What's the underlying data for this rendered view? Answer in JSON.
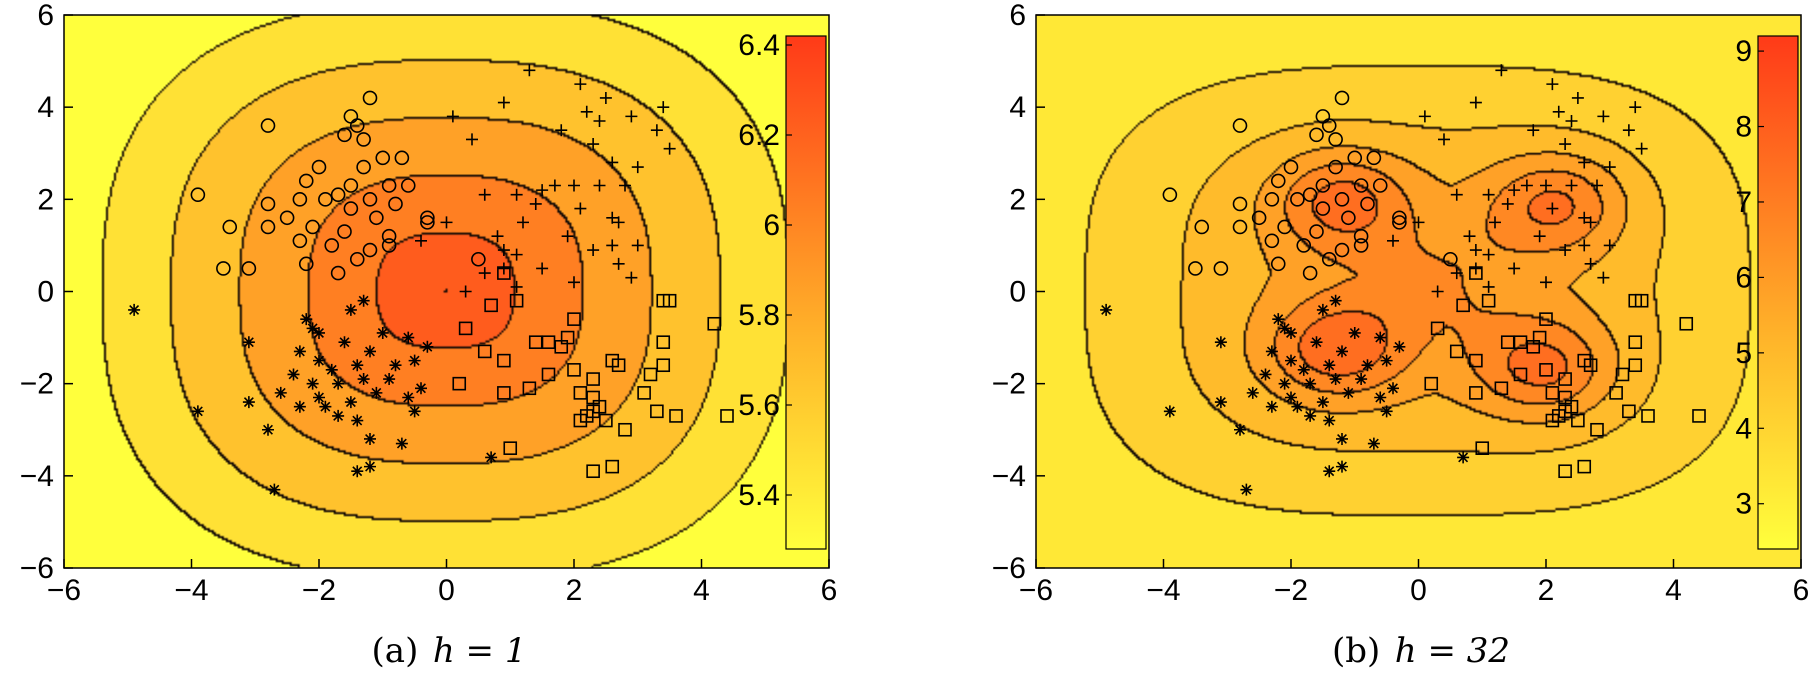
{
  "chart_data": [
    {
      "type": "heatmap",
      "title": "",
      "xlabel": "",
      "ylabel": "",
      "xlim": [
        -6,
        6
      ],
      "ylim": [
        -6,
        6
      ],
      "xticks": [
        "−6",
        "−4",
        "−2",
        "0",
        "2",
        "4",
        "6"
      ],
      "yticks": [
        "6",
        "4",
        "2",
        "0",
        "−2",
        "−4",
        "−6"
      ],
      "colorbar": {
        "range": [
          5.28,
          6.42
        ],
        "ticks": [
          "6.4",
          "6.2",
          "6",
          "5.8",
          "5.6",
          "5.4"
        ],
        "placement": "right-inside"
      },
      "peak_value": 6.35,
      "caption_prefix": "(a)",
      "caption_math": "h = 1",
      "grid": false
    },
    {
      "type": "heatmap",
      "title": "",
      "xlabel": "",
      "ylabel": "",
      "xlim": [
        -6,
        6
      ],
      "ylim": [
        -6,
        6
      ],
      "xticks": [
        "−6",
        "−4",
        "−2",
        "0",
        "2",
        "4",
        "6"
      ],
      "yticks": [
        "6",
        "4",
        "2",
        "0",
        "−2",
        "−4",
        "−6"
      ],
      "colorbar": {
        "range": [
          2.4,
          9.2
        ],
        "ticks": [
          "9",
          "8",
          "7",
          "6",
          "5",
          "4",
          "3"
        ],
        "placement": "right-inside"
      },
      "peak_value": 8.8,
      "caption_prefix": "(b)",
      "caption_math": "h = 32",
      "grid": false
    }
  ],
  "scatter": {
    "circles": [
      [
        -1.5,
        3.8
      ],
      [
        -1.4,
        3.6
      ],
      [
        -1.2,
        4.2
      ],
      [
        -2.8,
        3.6
      ],
      [
        -1.6,
        3.4
      ],
      [
        -1.3,
        3.3
      ],
      [
        -2.2,
        2.4
      ],
      [
        -1.5,
        2.3
      ],
      [
        -1.7,
        2.1
      ],
      [
        -0.7,
        2.9
      ],
      [
        -1.3,
        2.7
      ],
      [
        -0.9,
        2.3
      ],
      [
        -0.6,
        2.3
      ],
      [
        -3.9,
        2.1
      ],
      [
        -2.3,
        2.0
      ],
      [
        -1.9,
        2.0
      ],
      [
        -1.2,
        2.0
      ],
      [
        -2.8,
        1.9
      ],
      [
        -1.5,
        1.8
      ],
      [
        -0.8,
        1.9
      ],
      [
        -2.5,
        1.6
      ],
      [
        -1.1,
        1.6
      ],
      [
        -0.3,
        1.6
      ],
      [
        -3.4,
        1.4
      ],
      [
        -2.8,
        1.4
      ],
      [
        -2.1,
        1.4
      ],
      [
        -1.6,
        1.3
      ],
      [
        -0.9,
        1.2
      ],
      [
        -0.3,
        1.5
      ],
      [
        -2.3,
        1.1
      ],
      [
        -1.8,
        1.0
      ],
      [
        -1.2,
        0.9
      ],
      [
        -1.4,
        0.7
      ],
      [
        -3.5,
        0.5
      ],
      [
        -3.1,
        0.5
      ],
      [
        -2.2,
        0.6
      ],
      [
        -1.7,
        0.4
      ],
      [
        -0.9,
        1.0
      ],
      [
        0.5,
        0.7
      ],
      [
        -2.0,
        2.7
      ],
      [
        -1.0,
        2.9
      ]
    ],
    "pluses": [
      [
        1.3,
        4.8
      ],
      [
        2.1,
        4.5
      ],
      [
        2.5,
        4.2
      ],
      [
        3.4,
        4.0
      ],
      [
        0.1,
        3.8
      ],
      [
        0.9,
        4.1
      ],
      [
        2.2,
        3.9
      ],
      [
        2.4,
        3.7
      ],
      [
        2.9,
        3.8
      ],
      [
        1.8,
        3.5
      ],
      [
        3.3,
        3.5
      ],
      [
        0.4,
        3.3
      ],
      [
        2.3,
        3.2
      ],
      [
        3.5,
        3.1
      ],
      [
        2.6,
        2.8
      ],
      [
        3.0,
        2.7
      ],
      [
        0.6,
        2.1
      ],
      [
        1.1,
        2.1
      ],
      [
        1.5,
        2.2
      ],
      [
        1.7,
        2.3
      ],
      [
        2.0,
        2.3
      ],
      [
        2.4,
        2.3
      ],
      [
        2.8,
        2.3
      ],
      [
        1.4,
        1.9
      ],
      [
        2.1,
        1.8
      ],
      [
        2.6,
        1.6
      ],
      [
        2.7,
        1.5
      ],
      [
        1.9,
        1.2
      ],
      [
        2.6,
        1.0
      ],
      [
        3.0,
        1.0
      ],
      [
        0.0,
        1.5
      ],
      [
        1.2,
        1.5
      ],
      [
        0.8,
        1.2
      ],
      [
        -0.4,
        1.1
      ],
      [
        0.9,
        0.9
      ],
      [
        1.1,
        0.8
      ],
      [
        2.3,
        0.9
      ],
      [
        2.7,
        0.6
      ],
      [
        1.5,
        0.5
      ],
      [
        2.0,
        0.2
      ],
      [
        2.9,
        0.3
      ],
      [
        0.6,
        0.4
      ],
      [
        1.1,
        0.1
      ],
      [
        0.3,
        0.0
      ],
      [
        0.9,
        0.5
      ]
    ],
    "stars": [
      [
        -4.9,
        -0.4
      ],
      [
        -2.2,
        -0.6
      ],
      [
        -1.3,
        -0.2
      ],
      [
        -1.5,
        -0.4
      ],
      [
        -2.0,
        -0.9
      ],
      [
        -1.6,
        -1.1
      ],
      [
        -1.2,
        -1.3
      ],
      [
        -1.0,
        -0.9
      ],
      [
        -0.6,
        -1.0
      ],
      [
        -0.3,
        -1.2
      ],
      [
        -2.3,
        -1.3
      ],
      [
        -2.0,
        -1.5
      ],
      [
        -1.8,
        -1.7
      ],
      [
        -1.4,
        -1.6
      ],
      [
        -0.8,
        -1.6
      ],
      [
        -0.5,
        -1.5
      ],
      [
        -2.4,
        -1.8
      ],
      [
        -2.1,
        -2.0
      ],
      [
        -1.7,
        -2.0
      ],
      [
        -1.3,
        -1.9
      ],
      [
        -0.9,
        -1.9
      ],
      [
        -3.1,
        -1.1
      ],
      [
        -2.6,
        -2.2
      ],
      [
        -2.0,
        -2.3
      ],
      [
        -1.5,
        -2.4
      ],
      [
        -1.1,
        -2.2
      ],
      [
        -0.6,
        -2.3
      ],
      [
        -0.4,
        -2.1
      ],
      [
        -2.3,
        -2.5
      ],
      [
        -1.9,
        -2.5
      ],
      [
        -1.4,
        -2.8
      ],
      [
        -0.5,
        -2.6
      ],
      [
        -3.1,
        -2.4
      ],
      [
        -3.9,
        -2.6
      ],
      [
        -2.8,
        -3.0
      ],
      [
        -1.2,
        -3.2
      ],
      [
        -0.7,
        -3.3
      ],
      [
        0.7,
        -3.6
      ],
      [
        -1.4,
        -3.9
      ],
      [
        -1.2,
        -3.8
      ],
      [
        -2.7,
        -4.3
      ],
      [
        -1.7,
        -2.7
      ],
      [
        -2.1,
        -0.8
      ]
    ],
    "squares": [
      [
        0.9,
        0.4
      ],
      [
        1.1,
        -0.2
      ],
      [
        0.7,
        -0.3
      ],
      [
        0.3,
        -0.8
      ],
      [
        1.4,
        -1.1
      ],
      [
        1.6,
        -1.1
      ],
      [
        1.8,
        -1.2
      ],
      [
        1.9,
        -1.0
      ],
      [
        2.0,
        -0.6
      ],
      [
        0.6,
        -1.3
      ],
      [
        0.9,
        -1.5
      ],
      [
        1.6,
        -1.8
      ],
      [
        2.0,
        -1.7
      ],
      [
        2.6,
        -1.5
      ],
      [
        2.7,
        -1.6
      ],
      [
        2.3,
        -1.9
      ],
      [
        3.4,
        -0.2
      ],
      [
        3.5,
        -0.2
      ],
      [
        4.2,
        -0.7
      ],
      [
        3.4,
        -1.1
      ],
      [
        3.2,
        -1.8
      ],
      [
        3.4,
        -1.6
      ],
      [
        0.2,
        -2.0
      ],
      [
        0.9,
        -2.2
      ],
      [
        1.3,
        -2.1
      ],
      [
        2.1,
        -2.2
      ],
      [
        2.3,
        -2.3
      ],
      [
        2.4,
        -2.5
      ],
      [
        2.2,
        -2.7
      ],
      [
        2.3,
        -2.6
      ],
      [
        2.1,
        -2.8
      ],
      [
        2.5,
        -2.8
      ],
      [
        3.3,
        -2.6
      ],
      [
        3.6,
        -2.7
      ],
      [
        4.4,
        -2.7
      ],
      [
        2.8,
        -3.0
      ],
      [
        3.1,
        -2.2
      ],
      [
        1.0,
        -3.4
      ],
      [
        2.6,
        -3.8
      ],
      [
        2.3,
        -3.9
      ]
    ]
  }
}
